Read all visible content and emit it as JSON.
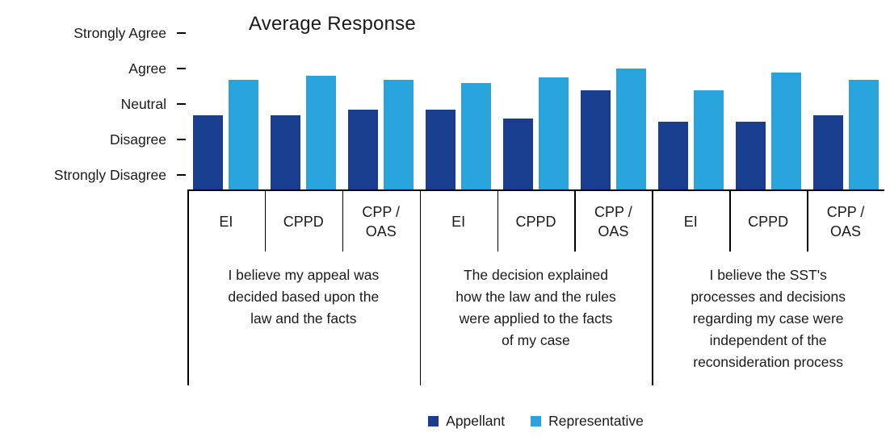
{
  "chart_data": {
    "type": "bar",
    "title": "Average Response",
    "y_axis": {
      "min": 0.6,
      "max": 5.2,
      "ticks": [
        {
          "label": "Strongly Agree",
          "value": 5
        },
        {
          "label": "Agree",
          "value": 4
        },
        {
          "label": "Neutral",
          "value": 3
        },
        {
          "label": "Disagree",
          "value": 2
        },
        {
          "label": "Strongly Disagree",
          "value": 1
        }
      ]
    },
    "groups": [
      {
        "question": "I believe my appeal was\ndecided based upon the\nlaw and the facts",
        "categories": [
          "EI",
          "CPPD",
          "CPP /\nOAS"
        ]
      },
      {
        "question": "The decision explained\nhow the law and the rules\nwere applied to the facts\nof my case",
        "categories": [
          "EI",
          "CPPD",
          "CPP /\nOAS"
        ]
      },
      {
        "question": "I believe the SST's\nprocesses and decisions\nregarding my case were\nindependent of the\nreconsideration process",
        "categories": [
          "EI",
          "CPPD",
          "CPP /\nOAS"
        ]
      }
    ],
    "series": [
      {
        "name": "Appellant",
        "color": "#1A3E8F",
        "values": [
          [
            2.7,
            2.7,
            2.85
          ],
          [
            2.85,
            2.6,
            3.4
          ],
          [
            2.5,
            2.5,
            2.7
          ]
        ]
      },
      {
        "name": "Representative",
        "color": "#29A3DC",
        "values": [
          [
            3.7,
            3.8,
            3.7
          ],
          [
            3.6,
            3.75,
            4.0
          ],
          [
            3.4,
            3.9,
            3.7
          ]
        ]
      }
    ],
    "legend_position": "bottom"
  }
}
